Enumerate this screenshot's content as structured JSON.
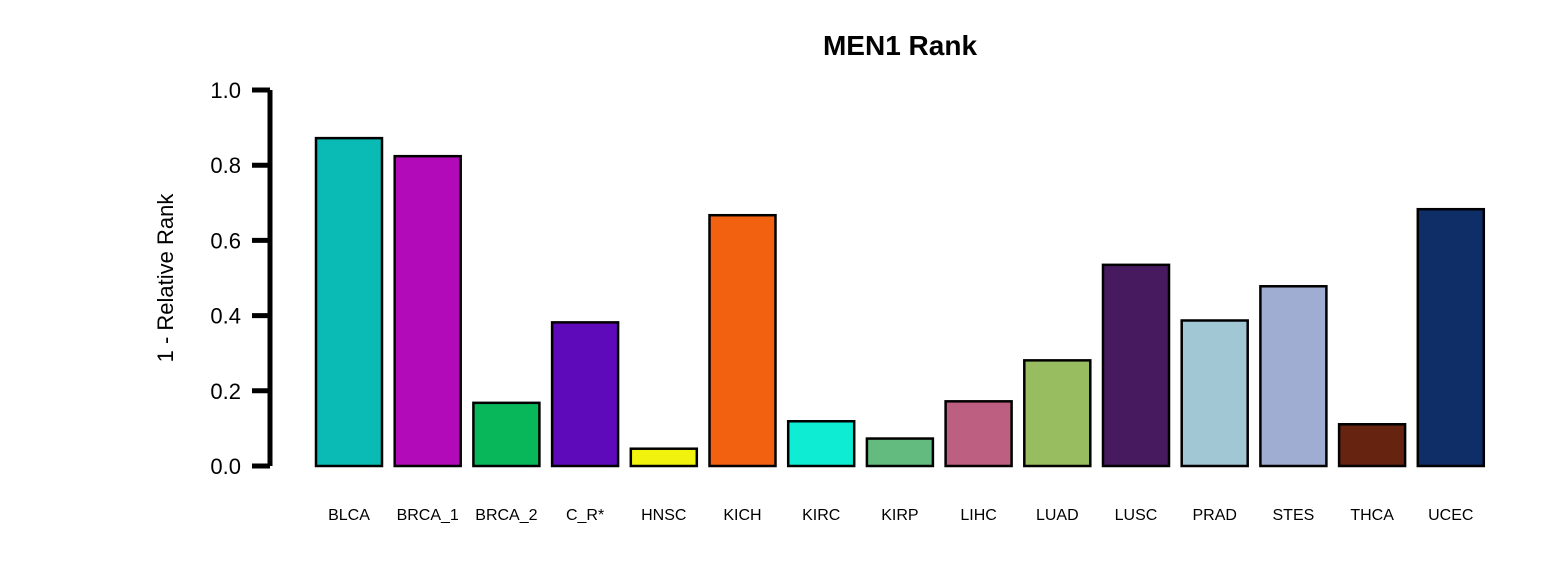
{
  "chart_data": {
    "type": "bar",
    "title": "MEN1 Rank",
    "xlabel": "",
    "ylabel": "1 - Relative Rank",
    "ylim": [
      0,
      1
    ],
    "yticks": [
      "0.0",
      "0.2",
      "0.4",
      "0.6",
      "0.8",
      "1.0"
    ],
    "grid": false,
    "categories": [
      "BLCA",
      "BRCA_1",
      "BRCA_2",
      "C_R*",
      "HNSC",
      "KICH",
      "KIRC",
      "KIRP",
      "LIHC",
      "LUAD",
      "LUSC",
      "PRAD",
      "STES",
      "THCA",
      "UCEC"
    ],
    "values": [
      0.872,
      0.824,
      0.168,
      0.382,
      0.046,
      0.667,
      0.119,
      0.073,
      0.172,
      0.281,
      0.535,
      0.387,
      0.478,
      0.111,
      0.683
    ],
    "colors": [
      "#0ABAB5",
      "#B30AB9",
      "#08B75A",
      "#5E0ABA",
      "#F2F20F",
      "#F26110",
      "#0EEDD3",
      "#64BB7F",
      "#BD5F80",
      "#97BD60",
      "#471A60",
      "#A1C6D4",
      "#A0ADD2",
      "#66230F",
      "#0F2E68"
    ]
  }
}
